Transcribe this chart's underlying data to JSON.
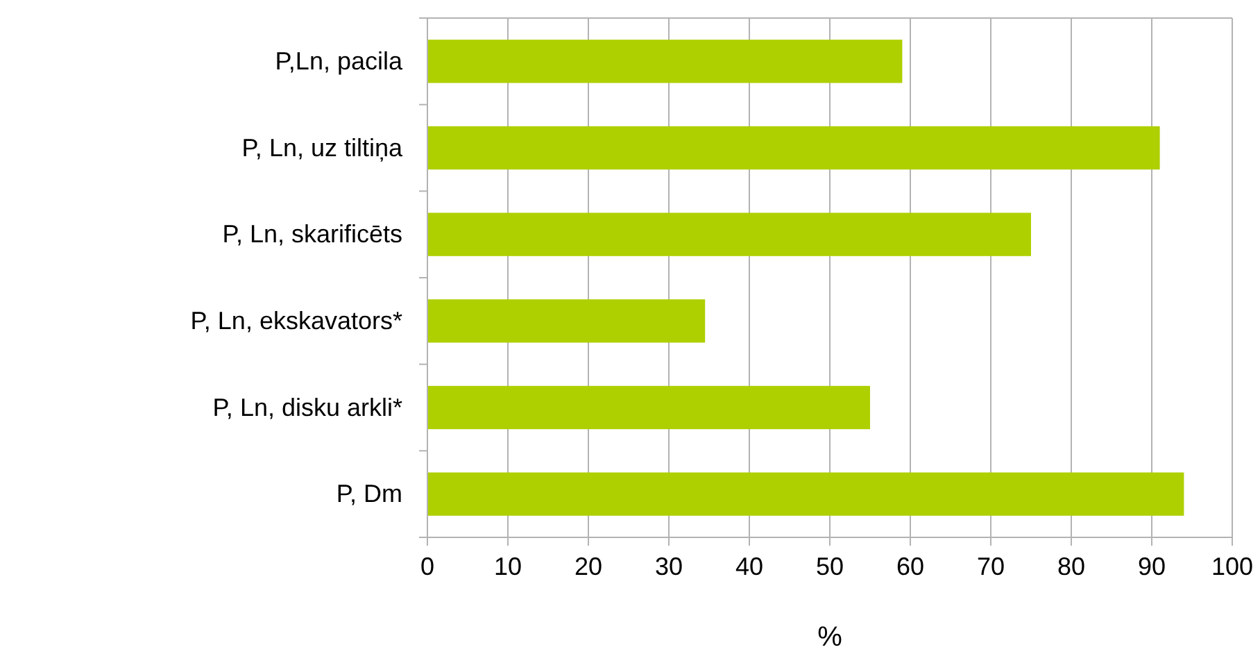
{
  "chart_data": {
    "type": "bar",
    "orientation": "horizontal",
    "categories": [
      "P,Ln, pacila",
      "P, Ln, uz tiltiņa",
      "P, Ln, skarificēts",
      "P, Ln, ekskavators*",
      "P, Ln, disku arkli*",
      "P, Dm"
    ],
    "values": [
      59,
      91,
      75,
      34.5,
      55,
      94
    ],
    "color": "#aed000",
    "xlabel": "%",
    "xlim": [
      0,
      100
    ],
    "xticks": [
      0,
      10,
      20,
      30,
      40,
      50,
      60,
      70,
      80,
      90,
      100
    ],
    "grid": "x"
  }
}
